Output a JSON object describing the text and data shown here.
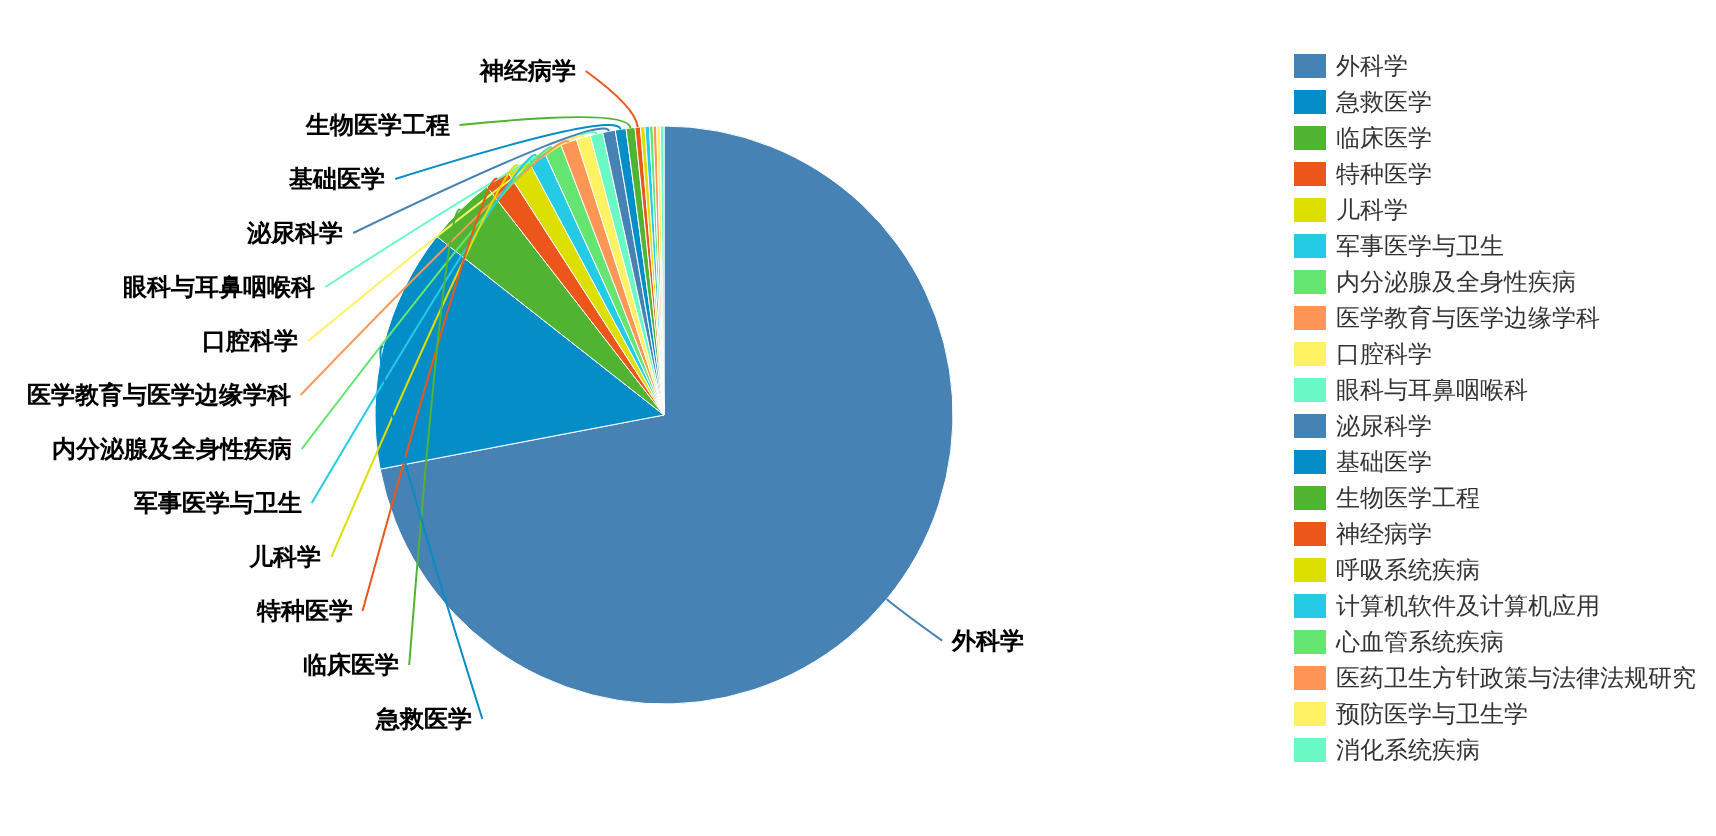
{
  "chart_data": {
    "type": "pie",
    "categories": [
      "外科学",
      "急救医学",
      "临床医学",
      "特种医学",
      "儿科学",
      "军事医学与卫生",
      "内分泌腺及全身性疾病",
      "医学教育与医学边缘学科",
      "口腔科学",
      "眼科与耳鼻咽喉科",
      "泌尿科学",
      "基础医学",
      "生物医学工程",
      "神经病学",
      "呼吸系统疾病",
      "计算机软件及计算机应用",
      "心血管系统疾病",
      "医药卫生方针政策与法律法规研究",
      "预防医学与卫生学",
      "消化系统疾病"
    ],
    "values": [
      72.0,
      13.6,
      3.9,
      1.4,
      1.3,
      1.0,
      1.0,
      0.9,
      0.8,
      0.7,
      0.7,
      0.6,
      0.5,
      0.3,
      0.25,
      0.25,
      0.2,
      0.2,
      0.2,
      0.2
    ],
    "colors": [
      "#4682b4",
      "#058dc7",
      "#50b432",
      "#ed561b",
      "#dddf00",
      "#24cbe5",
      "#64e572",
      "#ff9655",
      "#fff263",
      "#6af9c4",
      "#4682b4",
      "#058dc7",
      "#50b432",
      "#ed561b",
      "#dddf00",
      "#24cbe5",
      "#64e572",
      "#ff9655",
      "#fff263",
      "#6af9c4"
    ],
    "legend": "right"
  }
}
